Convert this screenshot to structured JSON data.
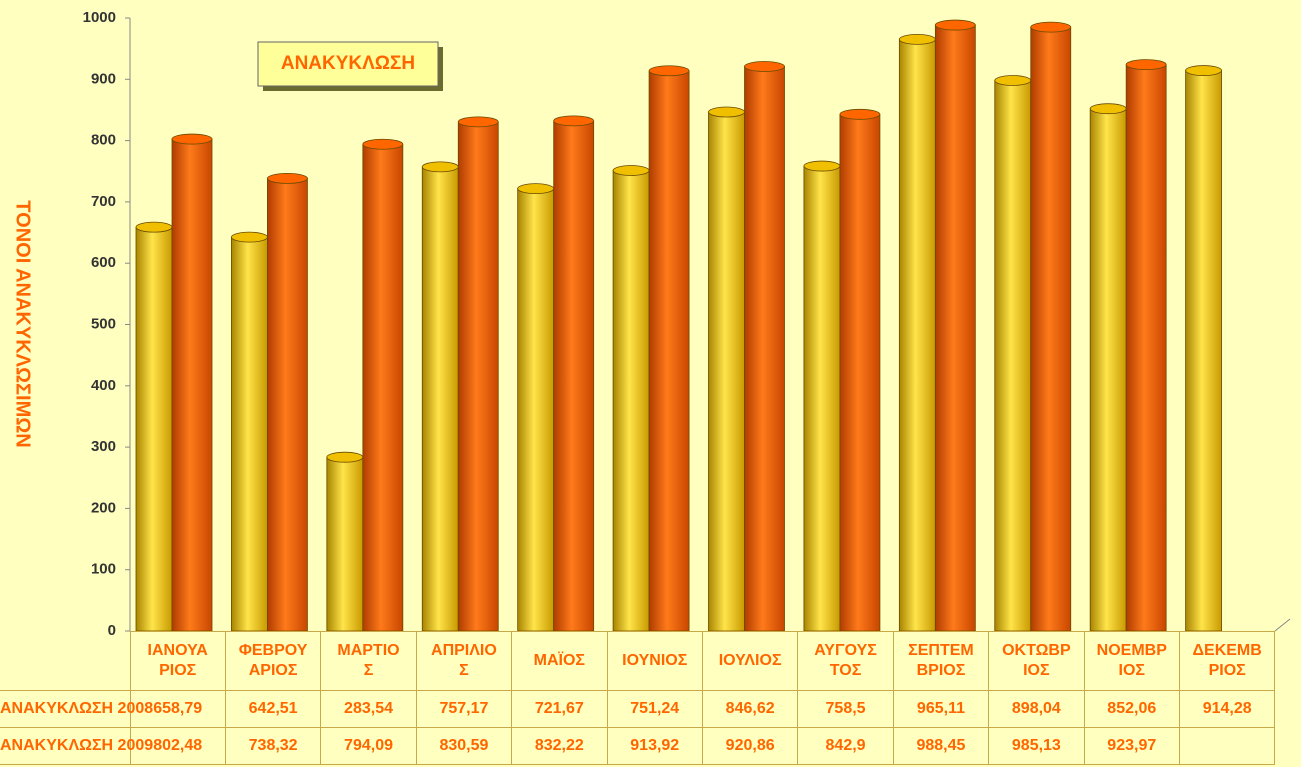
{
  "chart_data": {
    "type": "bar",
    "title": "ΑΝΑΚΥΚΛΩΣΗ",
    "y_label": "ΤΟΝΟΙ ΑΝΑΚΥΚΛΩΣΙΜΩΝ",
    "categories": [
      "ΙΑΝΟΥΑΡΙΟΣ",
      "ΦΕΒΡΟΥΑΡΙΟΣ",
      "ΜΑΡΤΙΟΣ",
      "ΑΠΡΙΛΙΟΣ",
      "ΜΑΪΟΣ",
      "ΙΟΥΝΙΟΣ",
      "ΙΟΥΛΙΟΣ",
      "ΑΥΓΟΥΣΤΟΣ",
      "ΣΕΠΤΕΜΒΡΙΟΣ",
      "ΟΚΤΩΒΡΙΟΣ",
      "ΝΟΕΜΒΡΙΟΣ",
      "ΔΕΚΕΜΒΡΙΟΣ"
    ],
    "series": [
      {
        "name": "ΑΝΑΚΥΚΛΩΣΗ 2008",
        "color": "#f0c000",
        "values": [
          658.79,
          642.51,
          283.54,
          757.17,
          721.67,
          751.24,
          846.62,
          758.5,
          965.11,
          898.04,
          852.06,
          914.28
        ],
        "value_labels": [
          "658,79",
          "642,51",
          "283,54",
          "757,17",
          "721,67",
          "751,24",
          "846,62",
          "758,5",
          "965,11",
          "898,04",
          "852,06",
          "914,28"
        ]
      },
      {
        "name": "ΑΝΑΚΥΚΛΩΣΗ 2009",
        "color": "#ff6600",
        "values": [
          802.48,
          738.32,
          794.09,
          830.59,
          832.22,
          913.92,
          920.86,
          842.9,
          988.45,
          985.13,
          923.97,
          null
        ],
        "value_labels": [
          "802,48",
          "738,32",
          "794,09",
          "830,59",
          "832,22",
          "913,92",
          "920,86",
          "842,9",
          "988,45",
          "985,13",
          "923,97",
          null
        ]
      }
    ],
    "ylim": [
      0,
      1000
    ],
    "yticks": [
      0,
      100,
      200,
      300,
      400,
      500,
      600,
      700,
      800,
      900,
      1000
    ],
    "grid": false
  }
}
